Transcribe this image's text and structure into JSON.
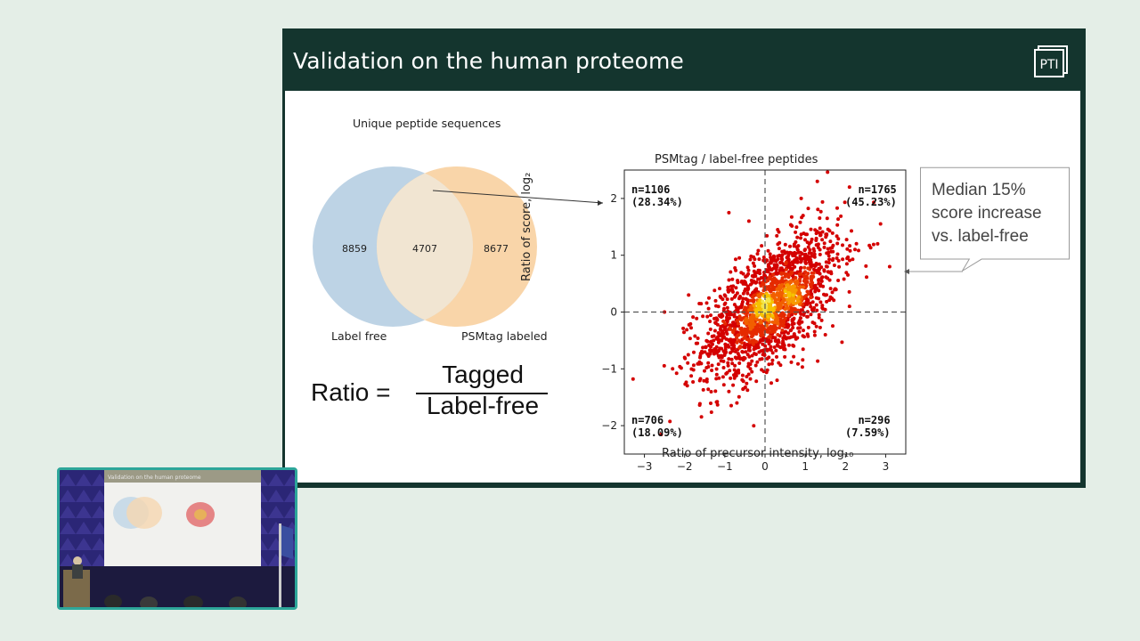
{
  "slide": {
    "title": "Validation on the human proteome",
    "logo_text": "PTI"
  },
  "venn": {
    "title": "Unique peptide sequences",
    "left_only": "8859",
    "overlap": "4707",
    "right_only": "8677",
    "left_label": "Label free",
    "right_label": "PSMtag labeled",
    "colors": {
      "left": "#b8d0e3",
      "right": "#f8cb95"
    }
  },
  "formula": {
    "lhs": "Ratio =",
    "numerator": "Tagged",
    "denominator": "Label-free"
  },
  "scatter": {
    "title": "PSMtag / label-free peptides",
    "xlabel": "Ratio of precursor intensity, log₁₀",
    "ylabel": "Ratio of score, log₂",
    "quadrants": {
      "top_left": "n=1106\n(28.34%)",
      "top_right": "n=1765\n(45.23%)",
      "bottom_left": "n=706\n(18.09%)",
      "bottom_right": "n=296\n(7.59%)"
    }
  },
  "callout": {
    "lines": [
      "Median 15%",
      "score increase",
      "vs. label-free"
    ]
  },
  "chart_data": {
    "type": "scatter",
    "title": "PSMtag / label-free peptides",
    "xlabel": "Ratio of precursor intensity, log₁₀",
    "ylabel": "Ratio of score, log₂",
    "xlim": [
      -3.5,
      3.5
    ],
    "ylim": [
      -2.5,
      2.5
    ],
    "xticks": [
      "−3",
      "−2",
      "−1",
      "0",
      "1",
      "2",
      "3"
    ],
    "yticks": [
      "−2",
      "−1",
      "0",
      "1",
      "2"
    ],
    "reference_lines": {
      "x": 0,
      "y": 0,
      "style": "dashed"
    },
    "point_count": 3873,
    "color_scale": "red (low density) to yellow (high density)",
    "points_sample": [
      [
        1.3,
        2.3
      ],
      [
        2.1,
        2.2
      ],
      [
        0.9,
        2.0
      ],
      [
        -0.9,
        1.75
      ],
      [
        -0.4,
        1.6
      ],
      [
        2.8,
        1.2
      ],
      [
        3.1,
        0.8
      ],
      [
        -1.9,
        0.3
      ],
      [
        -2.5,
        0.0
      ],
      [
        -2.3,
        -1.0
      ],
      [
        -2.0,
        -0.8
      ],
      [
        -0.9,
        -1.4
      ],
      [
        -0.7,
        -1.6
      ],
      [
        -1.2,
        -1.1
      ],
      [
        0.3,
        -1.2
      ],
      [
        1.5,
        -0.4
      ],
      [
        2.1,
        0.1
      ],
      [
        -0.2,
        0.3
      ],
      [
        0.1,
        0.2
      ],
      [
        0.0,
        0.1
      ],
      [
        0.3,
        0.4
      ],
      [
        0.6,
        0.7
      ],
      [
        -0.5,
        -0.3
      ],
      [
        0.8,
        0.9
      ],
      [
        1.1,
        1.2
      ]
    ],
    "quadrant_counts": [
      {
        "quadrant": "top-left",
        "n": 1106,
        "percent": 28.34
      },
      {
        "quadrant": "top-right",
        "n": 1765,
        "percent": 45.23
      },
      {
        "quadrant": "bottom-left",
        "n": 706,
        "percent": 18.09
      },
      {
        "quadrant": "bottom-right",
        "n": 296,
        "percent": 7.59
      }
    ]
  },
  "video": {
    "thumbnail_caption": "Validation on the human proteome"
  }
}
